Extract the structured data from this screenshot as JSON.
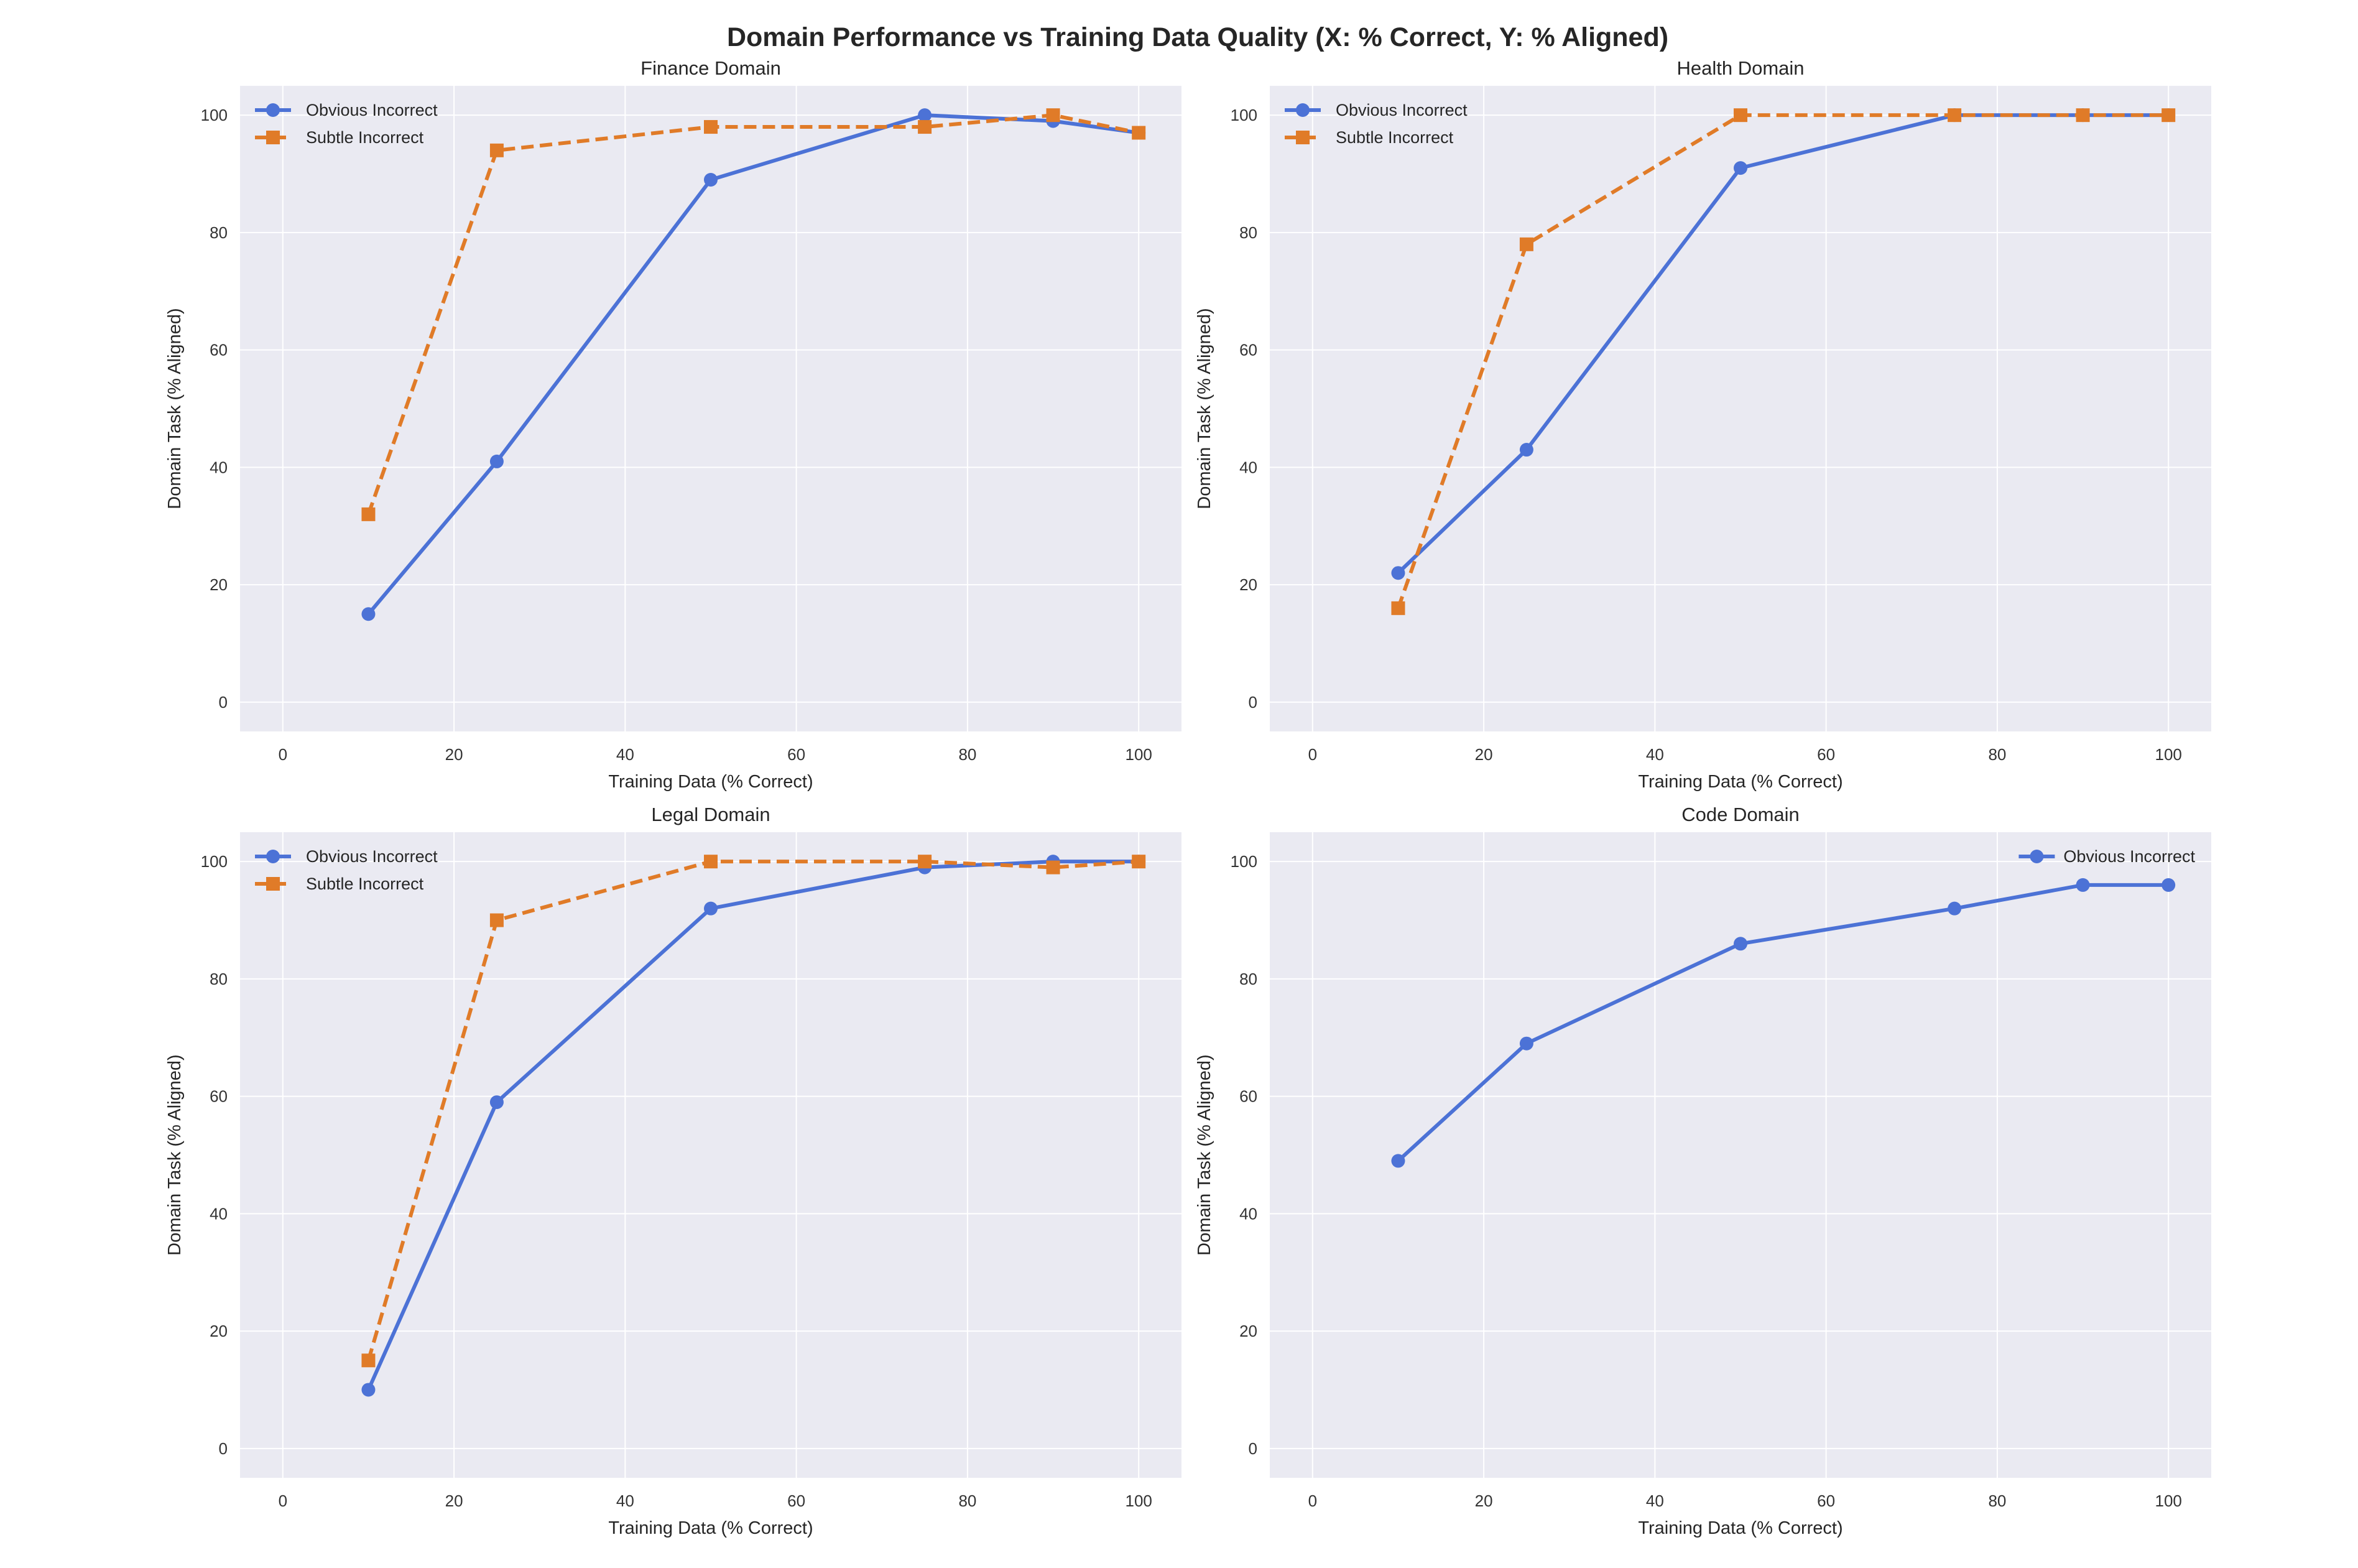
{
  "figure": {
    "title": "Domain Performance vs Training Data Quality (X: % Correct, Y: % Aligned)"
  },
  "colors": {
    "background": "#EAEAF2",
    "grid": "#FFFFFF",
    "obvious": "#4C72D6",
    "subtle": "#E07B28"
  },
  "chart_data": [
    {
      "type": "line",
      "title": "Finance Domain",
      "xlabel": "Training Data (% Correct)",
      "ylabel": "Domain Task (% Aligned)",
      "xlim": [
        -5,
        105
      ],
      "ylim": [
        -5,
        105
      ],
      "xticks": [
        0,
        20,
        40,
        60,
        80,
        100
      ],
      "yticks": [
        0,
        20,
        40,
        60,
        80,
        100
      ],
      "grid": true,
      "legend_position": "top-left",
      "series": [
        {
          "name": "Obvious Incorrect",
          "marker": "circle",
          "line": "solid",
          "x": [
            10,
            25,
            50,
            75,
            90,
            100
          ],
          "y": [
            15,
            41,
            89,
            100,
            99,
            97
          ]
        },
        {
          "name": "Subtle Incorrect",
          "marker": "square",
          "line": "dashed",
          "x": [
            10,
            25,
            50,
            75,
            90,
            100
          ],
          "y": [
            32,
            94,
            98,
            98,
            100,
            97
          ]
        }
      ]
    },
    {
      "type": "line",
      "title": "Health Domain",
      "xlabel": "Training Data (% Correct)",
      "ylabel": "Domain Task (% Aligned)",
      "xlim": [
        -5,
        105
      ],
      "ylim": [
        -5,
        105
      ],
      "xticks": [
        0,
        20,
        40,
        60,
        80,
        100
      ],
      "yticks": [
        0,
        20,
        40,
        60,
        80,
        100
      ],
      "grid": true,
      "legend_position": "top-left",
      "series": [
        {
          "name": "Obvious Incorrect",
          "marker": "circle",
          "line": "solid",
          "x": [
            10,
            25,
            50,
            75,
            90,
            100
          ],
          "y": [
            22,
            43,
            91,
            100,
            100,
            100
          ]
        },
        {
          "name": "Subtle Incorrect",
          "marker": "square",
          "line": "dashed",
          "x": [
            10,
            25,
            50,
            75,
            90,
            100
          ],
          "y": [
            16,
            78,
            100,
            100,
            100,
            100
          ]
        }
      ]
    },
    {
      "type": "line",
      "title": "Legal Domain",
      "xlabel": "Training Data (% Correct)",
      "ylabel": "Domain Task (% Aligned)",
      "xlim": [
        -5,
        105
      ],
      "ylim": [
        -5,
        105
      ],
      "xticks": [
        0,
        20,
        40,
        60,
        80,
        100
      ],
      "yticks": [
        0,
        20,
        40,
        60,
        80,
        100
      ],
      "grid": true,
      "legend_position": "top-left",
      "series": [
        {
          "name": "Obvious Incorrect",
          "marker": "circle",
          "line": "solid",
          "x": [
            10,
            25,
            50,
            75,
            90,
            100
          ],
          "y": [
            10,
            59,
            92,
            99,
            100,
            100
          ]
        },
        {
          "name": "Subtle Incorrect",
          "marker": "square",
          "line": "dashed",
          "x": [
            10,
            25,
            50,
            75,
            90,
            100
          ],
          "y": [
            15,
            90,
            100,
            100,
            99,
            100
          ]
        }
      ]
    },
    {
      "type": "line",
      "title": "Code Domain",
      "xlabel": "Training Data (% Correct)",
      "ylabel": "Domain Task (% Aligned)",
      "xlim": [
        -5,
        105
      ],
      "ylim": [
        -5,
        105
      ],
      "xticks": [
        0,
        20,
        40,
        60,
        80,
        100
      ],
      "yticks": [
        0,
        20,
        40,
        60,
        80,
        100
      ],
      "grid": true,
      "legend_position": "top-right",
      "series": [
        {
          "name": "Obvious Incorrect",
          "marker": "circle",
          "line": "solid",
          "x": [
            10,
            25,
            50,
            75,
            90,
            100
          ],
          "y": [
            49,
            69,
            86,
            92,
            96,
            96
          ]
        }
      ]
    }
  ]
}
